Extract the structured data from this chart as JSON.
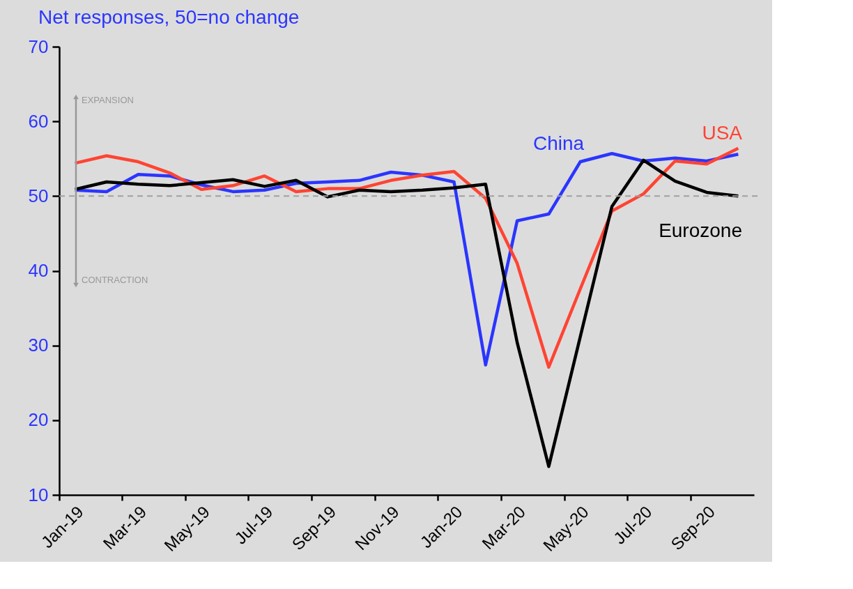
{
  "chart_data": {
    "type": "line",
    "ylabel": "Net responses, 50=no change",
    "categories": [
      "Jan-19",
      null,
      "Mar-19",
      null,
      "May-19",
      null,
      "Jul-19",
      null,
      "Sep-19",
      null,
      "Nov-19",
      null,
      "Jan-20",
      null,
      "Mar-20",
      null,
      "May-20",
      null,
      "Jul-20",
      null,
      "Sep-20",
      null
    ],
    "series": [
      {
        "name": "China",
        "color": "#2b35ff",
        "values": [
          50.8,
          50.6,
          52.9,
          52.7,
          51.5,
          50.6,
          50.8,
          51.7,
          51.9,
          52.1,
          53.2,
          52.8,
          51.9,
          27.4,
          46.7,
          47.6,
          54.6,
          55.7,
          54.7,
          55.1,
          54.7,
          55.6
        ]
      },
      {
        "name": "USA",
        "color": "#ff4433",
        "values": [
          54.4,
          55.4,
          54.6,
          53.1,
          50.9,
          51.4,
          52.7,
          50.6,
          51.0,
          51.0,
          52.1,
          52.8,
          53.3,
          49.7,
          41.0,
          27.1,
          37.6,
          48.0,
          50.3,
          54.7,
          54.3,
          56.4
        ]
      },
      {
        "name": "Eurozone",
        "color": "#000000",
        "values": [
          50.9,
          51.9,
          51.6,
          51.4,
          51.8,
          52.2,
          51.3,
          52.1,
          49.9,
          50.8,
          50.6,
          50.8,
          51.1,
          51.6,
          30.4,
          13.8,
          31.2,
          48.6,
          54.8,
          52.0,
          50.5,
          50.0
        ]
      }
    ],
    "ylim": [
      10,
      70
    ],
    "yticks": [
      10,
      20,
      30,
      40,
      50,
      60,
      70
    ],
    "ref_lines": [
      {
        "axis": "y",
        "value": 50,
        "color": "#a0a0a0",
        "line_style": "dashed"
      }
    ],
    "annotations": [
      "EXPANSION",
      "CONTRACTION"
    ],
    "line_style": "solid",
    "marker": "none"
  }
}
